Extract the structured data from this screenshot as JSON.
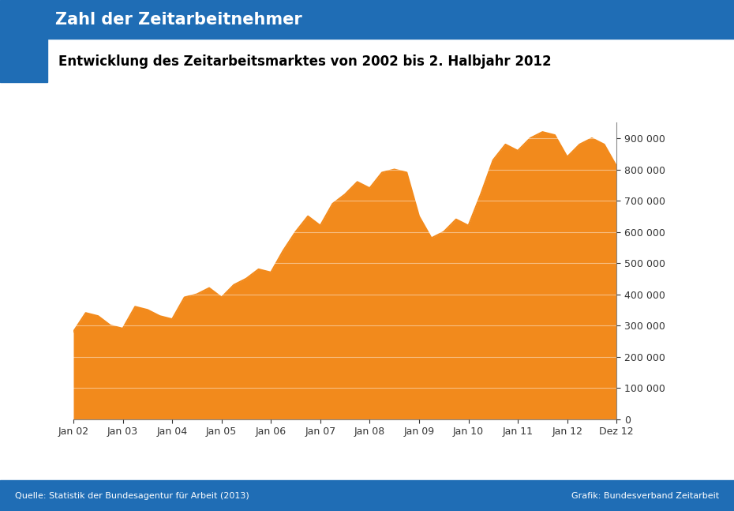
{
  "chart_data": {
    "type": "area",
    "title": "Zahl der Zeitarbeitnehmer",
    "subtitle": "Entwicklung des Zeitarbeitsmarktes von 2002 bis 2. Halbjahr 2012",
    "annotations": [
      "Quelle: Statistik der Bundesagentur für Arbeit (2013)",
      "Grafik: Bundesverband Zeitarbeit"
    ],
    "categories": [
      "Jan 02",
      null,
      null,
      null,
      "Jan 03",
      null,
      null,
      null,
      "Jan 04",
      null,
      null,
      null,
      "Jan 05",
      null,
      null,
      null,
      "Jan 06",
      null,
      null,
      null,
      "Jan 07",
      null,
      null,
      null,
      "Jan 08",
      null,
      null,
      null,
      "Jan 09",
      null,
      null,
      null,
      "Jan 10",
      null,
      null,
      null,
      "Jan 11",
      null,
      null,
      null,
      "Jan 12",
      null,
      null,
      null,
      "Dez 12"
    ],
    "values": [
      280000,
      340000,
      330000,
      300000,
      290000,
      360000,
      350000,
      330000,
      320000,
      390000,
      400000,
      420000,
      390000,
      430000,
      450000,
      480000,
      470000,
      540000,
      600000,
      650000,
      620000,
      690000,
      720000,
      760000,
      740000,
      790000,
      800000,
      790000,
      650000,
      580000,
      600000,
      640000,
      620000,
      720000,
      830000,
      880000,
      860000,
      900000,
      920000,
      910000,
      840000,
      880000,
      900000,
      880000,
      810000
    ],
    "color": "#f28a1c",
    "ylim": [
      0,
      950000
    ],
    "yticks": [
      {
        "value": 0,
        "label": "0"
      },
      {
        "value": 100000,
        "label": "100 000"
      },
      {
        "value": 200000,
        "label": "200 000"
      },
      {
        "value": 300000,
        "label": "300 000"
      },
      {
        "value": 400000,
        "label": "400 000"
      },
      {
        "value": 500000,
        "label": "500 000"
      },
      {
        "value": 600000,
        "label": "600 000"
      },
      {
        "value": 700000,
        "label": "700 000"
      },
      {
        "value": 800000,
        "label": "800 000"
      },
      {
        "value": 900000,
        "label": "900 000"
      }
    ],
    "grid": true
  }
}
